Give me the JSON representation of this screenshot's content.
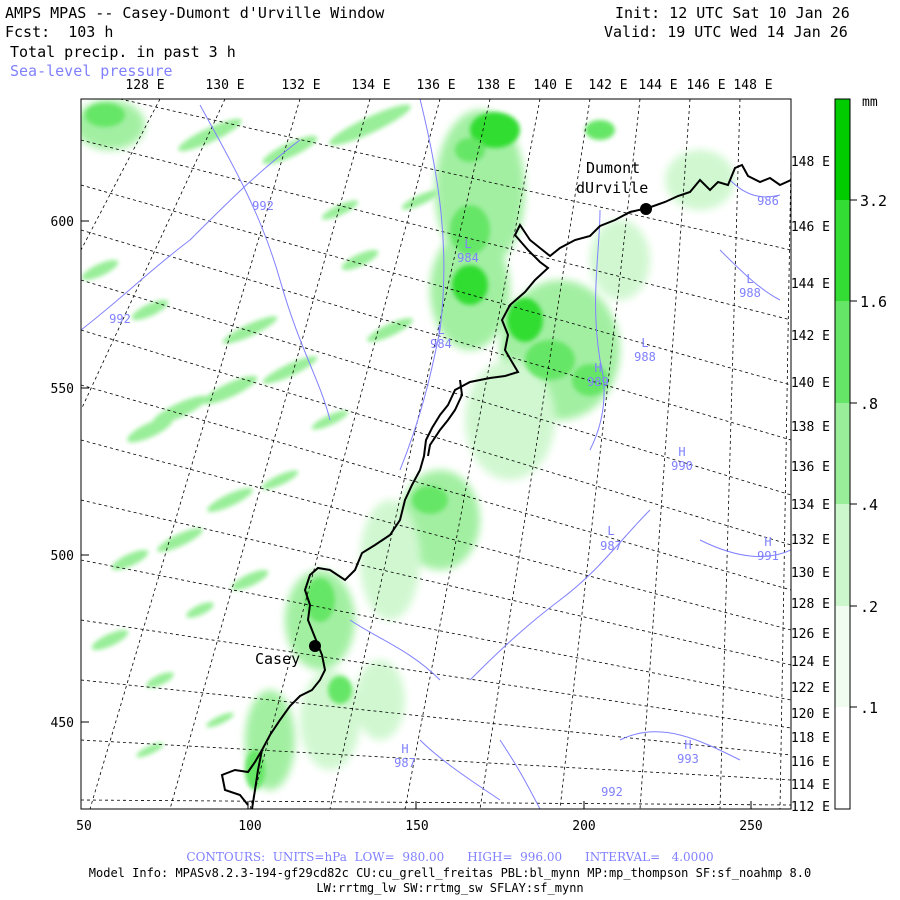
{
  "header": {
    "title": "AMPS MPAS -- Casey-Dumont d'Urville Window",
    "fcst": "Fcst:  103 h",
    "field": "Total precip. in past 3 h",
    "overlay": "Sea-level pressure",
    "init": "Init: 12 UTC Sat 10 Jan 26",
    "valid": "Valid: 19 UTC Wed 14 Jan 26"
  },
  "map": {
    "top_lon_labels": [
      "128 E",
      "130 E",
      "132 E",
      "134 E",
      "136 E",
      "138 E",
      "140 E",
      "142 E",
      "144 E",
      "146 E",
      "148 E"
    ],
    "right_lon_labels": [
      "148 E",
      "146 E",
      "144 E",
      "142 E",
      "140 E",
      "138 E",
      "136 E",
      "134 E",
      "132 E",
      "130 E",
      "128 E",
      "126 E",
      "124 E",
      "122 E",
      "120 E",
      "118 E",
      "116 E",
      "114 E",
      "112 E"
    ],
    "x_ticks": [
      "50",
      "100",
      "150",
      "200",
      "250"
    ],
    "y_ticks": [
      "600",
      "550",
      "500",
      "450"
    ],
    "stations": [
      {
        "name": "Dumont\ndUrville",
        "line1": "Dumont",
        "line2": "dUrville"
      },
      {
        "name": "Casey"
      }
    ],
    "pressure_labels": [
      {
        "kind": "",
        "value": "992"
      },
      {
        "kind": "",
        "value": "992"
      },
      {
        "kind": "L",
        "value": "984"
      },
      {
        "kind": "L",
        "value": "984"
      },
      {
        "kind": "L",
        "value": "988"
      },
      {
        "kind": "H",
        "value": "989"
      },
      {
        "kind": "H",
        "value": "990"
      },
      {
        "kind": "L",
        "value": "987"
      },
      {
        "kind": "H",
        "value": "991"
      },
      {
        "kind": "H",
        "value": "987"
      },
      {
        "kind": "H",
        "value": "993"
      },
      {
        "kind": "",
        "value": "992"
      },
      {
        "kind": "",
        "value": "986"
      },
      {
        "kind": "L",
        "value": "988"
      }
    ]
  },
  "colorbar": {
    "unit": "mm",
    "labels": [
      "3.2",
      "1.6",
      ".8",
      ".4",
      ".2",
      ".1"
    ],
    "colors": [
      "#00cc00",
      "#33dd33",
      "#66e666",
      "#99ee99",
      "#ccf7cc",
      "#ffffff"
    ]
  },
  "footer": {
    "contours": "CONTOURS:  UNITS=hPa  LOW=  980.00      HIGH=  996.00      INTERVAL=   4.0000",
    "model_info": "Model Info: MPASv8.2.3-194-gf29cd82c CU:cu_grell_freitas PBL:bl_mynn MP:mp_thompson SF:sf_noahmp 8.0",
    "physics": "LW:rrtmg_lw SW:rrtmg_sw SFLAY:sf_mynn"
  },
  "colors": {
    "contour": "#8080ff",
    "grid": "#000000",
    "coast": "#000000"
  }
}
